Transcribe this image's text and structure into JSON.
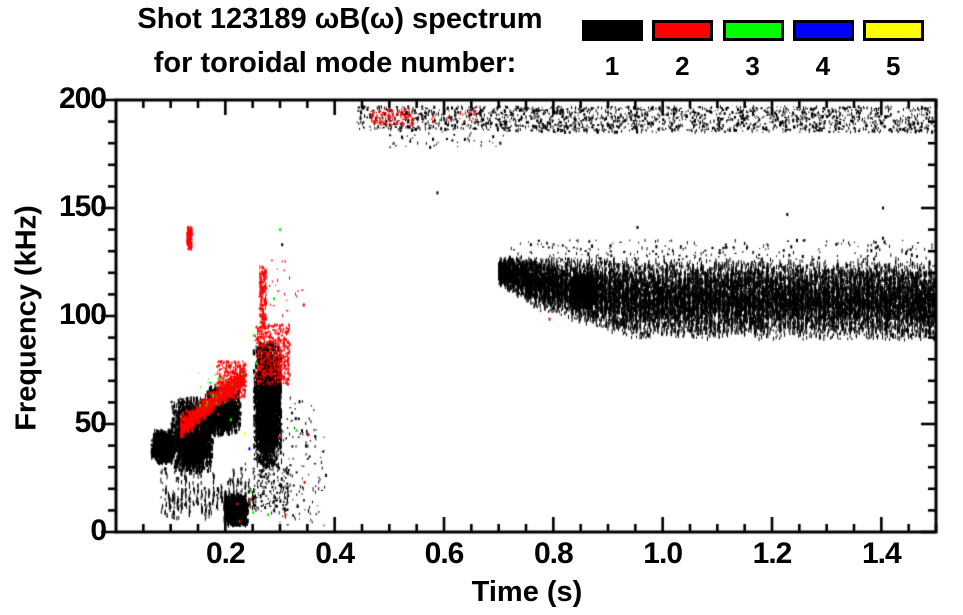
{
  "header": {
    "title_line1": "Shot 123189 ωB(ω) spectrum",
    "title_line2": "for toroidal mode number:"
  },
  "legend": {
    "modes": [
      {
        "label": "1",
        "color": "#000000"
      },
      {
        "label": "2",
        "color": "#ff0000"
      },
      {
        "label": "3",
        "color": "#00ff00"
      },
      {
        "label": "4",
        "color": "#0000ff"
      },
      {
        "label": "5",
        "color": "#ffff00"
      }
    ]
  },
  "chart_data": {
    "type": "scatter",
    "title": "Shot 123189 ωB(ω) spectrum for toroidal mode number: 1 2 3 4 5",
    "xlabel": "Time (s)",
    "ylabel": "Frequency (kHz)",
    "xlim": [
      0,
      1.5
    ],
    "ylim": [
      0,
      200
    ],
    "xticks_major": [
      0.2,
      0.4,
      0.6,
      0.8,
      1.0,
      1.2,
      1.4
    ],
    "xtick_labels": [
      "0.2",
      "0.4",
      "0.6",
      "0.8",
      "1.0",
      "1.2",
      "1.4"
    ],
    "xtick_minor_step": 0.05,
    "yticks_major": [
      0,
      50,
      100,
      150,
      200
    ],
    "ytick_labels": [
      "0",
      "50",
      "100",
      "150",
      "200"
    ],
    "ytick_minor_step": 10,
    "grid": false,
    "legend_position": "top-right",
    "axis_color": "#000000",
    "mode_colors": {
      "1": "#000000",
      "2": "#ff0000",
      "3": "#00ff00",
      "4": "#0000ff",
      "5": "#ffff00"
    },
    "clusters": [
      {
        "mode": 1,
        "style": "blob",
        "t": [
          0.065,
          0.107
        ],
        "f": [
          32,
          47
        ],
        "n": 1100
      },
      {
        "mode": 1,
        "style": "blob",
        "t": [
          0.1,
          0.178
        ],
        "f": [
          27,
          62
        ],
        "n": 2600
      },
      {
        "mode": 1,
        "style": "vstreaks",
        "t": [
          0.08,
          0.255
        ],
        "f": [
          5,
          32
        ],
        "n": 420,
        "streaks": 24
      },
      {
        "mode": 1,
        "style": "blob",
        "t": [
          0.163,
          0.228
        ],
        "f": [
          45,
          67
        ],
        "n": 1700
      },
      {
        "mode": 1,
        "style": "blob",
        "t": [
          0.198,
          0.242
        ],
        "f": [
          3,
          17
        ],
        "n": 1100
      },
      {
        "mode": 1,
        "style": "blob",
        "t": [
          0.252,
          0.303
        ],
        "f": [
          30,
          88
        ],
        "n": 3200
      },
      {
        "mode": 1,
        "style": "speckle",
        "t": [
          0.25,
          0.315
        ],
        "f": [
          8,
          30
        ],
        "n": 170
      },
      {
        "mode": 1,
        "style": "speckle",
        "t": [
          0.3,
          0.385
        ],
        "f": [
          3,
          62
        ],
        "n": 130
      },
      {
        "mode": 1,
        "style": "speckle",
        "t": [
          0.44,
          0.7
        ],
        "f": [
          186,
          197
        ],
        "n": 380
      },
      {
        "mode": 1,
        "style": "speckle",
        "t": [
          0.5,
          0.71
        ],
        "f": [
          178,
          188
        ],
        "n": 50
      },
      {
        "mode": 1,
        "style": "speckle",
        "t": [
          0.7,
          1.5
        ],
        "f": [
          185,
          197
        ],
        "n": 1500
      },
      {
        "mode": 1,
        "style": "band",
        "t": [
          0.7,
          1.5
        ],
        "n": 15000,
        "top": [
          [
            0.7,
            128
          ],
          [
            0.8,
            127
          ],
          [
            1.5,
            126
          ]
        ],
        "bottom": [
          [
            0.7,
            114
          ],
          [
            0.78,
            102
          ],
          [
            0.95,
            89
          ],
          [
            1.5,
            88
          ]
        ],
        "striation_period": 0.008
      },
      {
        "mode": 1,
        "style": "blob",
        "t": [
          0.835,
          0.878
        ],
        "f": [
          104,
          119
        ],
        "n": 900
      },
      {
        "mode": 1,
        "style": "speckle",
        "t": [
          0.72,
          1.5
        ],
        "f": [
          126,
          135
        ],
        "n": 230
      },
      {
        "mode": 1,
        "style": "dots",
        "pts": [
          [
            1.228,
            147
          ],
          [
            1.403,
            150
          ],
          [
            1.403,
            136
          ],
          [
            0.69,
            183
          ],
          [
            0.703,
            180
          ],
          [
            0.304,
            133
          ],
          [
            0.588,
            157
          ],
          [
            0.954,
            141
          ]
        ]
      },
      {
        "mode": 2,
        "style": "chirp",
        "t": [
          0.118,
          0.235
        ],
        "f0": 48,
        "f1": 72,
        "w": 4,
        "n": 950
      },
      {
        "mode": 2,
        "style": "speckle",
        "t": [
          0.185,
          0.238
        ],
        "f": [
          62,
          79
        ],
        "n": 330
      },
      {
        "mode": 2,
        "style": "vstreak",
        "t": [
          0.13,
          0.139
        ],
        "f": [
          131,
          141
        ],
        "n": 70
      },
      {
        "mode": 2,
        "style": "speckle",
        "t": [
          0.255,
          0.318
        ],
        "f": [
          68,
          96
        ],
        "n": 520
      },
      {
        "mode": 2,
        "style": "vstreak",
        "t": [
          0.263,
          0.275
        ],
        "f": [
          94,
          123
        ],
        "n": 130
      },
      {
        "mode": 2,
        "style": "speckle",
        "t": [
          0.28,
          0.35
        ],
        "f": [
          98,
          126
        ],
        "n": 22
      },
      {
        "mode": 2,
        "style": "speckle",
        "t": [
          0.465,
          0.545
        ],
        "f": [
          188,
          196
        ],
        "n": 110
      },
      {
        "mode": 2,
        "style": "speckle",
        "t": [
          0.55,
          0.66
        ],
        "f": [
          189,
          196
        ],
        "n": 20
      },
      {
        "mode": 2,
        "style": "dots",
        "pts": [
          [
            0.222,
            13
          ],
          [
            0.247,
            15
          ],
          [
            0.345,
            23
          ],
          [
            0.352,
            45
          ],
          [
            0.302,
            44
          ],
          [
            0.793,
            98.5
          ],
          [
            0.226,
            5
          ],
          [
            0.31,
            8
          ],
          [
            0.135,
            55
          ]
        ]
      },
      {
        "mode": 3,
        "style": "speckle",
        "t": [
          0.145,
          0.235
        ],
        "f": [
          58,
          77
        ],
        "n": 22
      },
      {
        "mode": 3,
        "style": "dots",
        "pts": [
          [
            0.188,
            71
          ],
          [
            0.257,
            78
          ],
          [
            0.247,
            19
          ],
          [
            0.251,
            9
          ],
          [
            0.278,
            8
          ],
          [
            0.289,
            108
          ],
          [
            0.252,
            91
          ],
          [
            0.33,
            47
          ],
          [
            0.3,
            140
          ],
          [
            0.21,
            52
          ]
        ]
      },
      {
        "mode": 4,
        "style": "dots",
        "pts": [
          [
            0.244,
            38.5
          ]
        ]
      },
      {
        "mode": 5,
        "style": "dots",
        "pts": [
          [
            0.235,
            45.5
          ]
        ]
      }
    ]
  }
}
